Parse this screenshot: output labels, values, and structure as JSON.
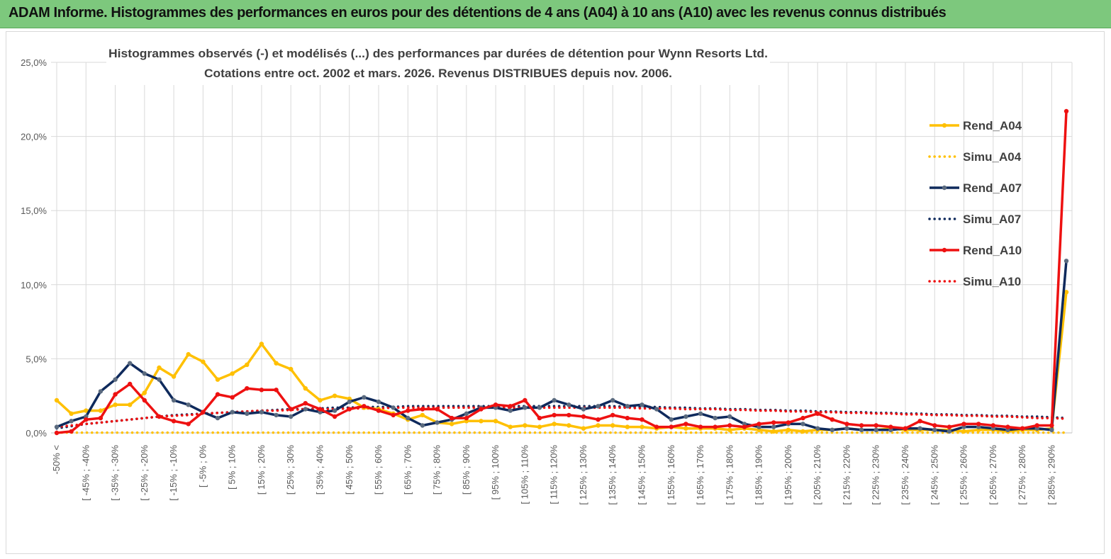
{
  "banner": {
    "title": "ADAM Informe. Histogrammes des performances en euros pour des détentions de 4 ans (A04) à 10 ans (A10) avec les revenus connus distribués"
  },
  "colors": {
    "banner": "#7dc87d",
    "A04": "#ffc000",
    "A07": "#0f2a5c",
    "A07_marker": "#5b6b7f",
    "A10": "#ee1111",
    "grid": "#d9d9d9"
  },
  "chart_data": {
    "type": "line",
    "title_line1": "Histogrammes observés (-) et modélisés (...) des performances par durées de détention pour Wynn Resorts Ltd.",
    "title_line2": "Cotations entre oct. 2002 et mars. 2026. Revenus DISTRIBUES depuis nov. 2006.",
    "xlabel": "",
    "ylabel": "",
    "ylim": [
      0,
      25
    ],
    "yticks": [
      "0,0%",
      "5,0%",
      "10,0%",
      "15,0%",
      "20,0%",
      "25,0%"
    ],
    "n_points": 70,
    "x_labels": [
      "-50% <",
      "[ -45% ; -40%",
      "[ -35% ; -30%",
      "[ -25% ; -20%",
      "[ -15% ; -10%",
      "[ -5% ; 0%",
      "[ 5% ; 10%",
      "[ 15% ; 20%",
      "[ 25% ; 30%",
      "[ 35% ; 40%",
      "[ 45% ; 50%",
      "[ 55% ; 60%",
      "[ 65% ; 70%",
      "[ 75% ; 80%",
      "[ 85% ; 90%",
      "[ 95% ; 100%",
      "[ 105% ; 110%",
      "[ 115% ; 120%",
      "[ 125% ; 130%",
      "[ 135% ; 140%",
      "[ 145% ; 150%",
      "[ 155% ; 160%",
      "[ 165% ; 170%",
      "[ 175% ; 180%",
      "[ 185% ; 190%",
      "[ 195% ; 200%",
      "[ 205% ; 210%",
      "[ 215% ; 220%",
      "[ 225% ; 230%",
      "[ 235% ; 240%",
      "[ 245% ; 250%",
      "[ 255% ; 260%",
      "[ 265% ; 270%",
      "[ 275% ; 280%",
      "[ 285% ; 290%"
    ],
    "legend": [
      "Rend_A04",
      "Simu_A04",
      "Rend_A07",
      "Simu_A07",
      "Rend_A10",
      "Simu_A10"
    ],
    "legend_position": "right",
    "series": [
      {
        "name": "Rend_A04",
        "style": "solid",
        "color": "#ffc000",
        "values": [
          2.2,
          1.3,
          1.5,
          1.5,
          1.9,
          1.9,
          2.7,
          4.4,
          3.8,
          5.3,
          4.8,
          3.6,
          4.0,
          4.6,
          6.0,
          4.7,
          4.3,
          3.0,
          2.2,
          2.5,
          2.3,
          1.7,
          1.6,
          1.3,
          0.9,
          1.2,
          0.7,
          0.6,
          0.8,
          0.8,
          0.8,
          0.4,
          0.5,
          0.4,
          0.6,
          0.5,
          0.3,
          0.5,
          0.5,
          0.4,
          0.4,
          0.3,
          0.4,
          0.3,
          0.3,
          0.3,
          0.2,
          0.3,
          0.2,
          0.1,
          0.2,
          0.1,
          0.2,
          0.2,
          0.3,
          0.2,
          0.2,
          0.3,
          0.2,
          0.2,
          0.2,
          0.2,
          0.1,
          0.2,
          0.2,
          0.1,
          0.2,
          0.2,
          0.3,
          9.5
        ]
      },
      {
        "name": "Simu_A04",
        "style": "dotted",
        "color": "#ffc000",
        "values": [
          0.02,
          0.02,
          0.02,
          0.02,
          0.02,
          0.02,
          0.02,
          0.02,
          0.02,
          0.02,
          0.02,
          0.02,
          0.02,
          0.02,
          0.02,
          0.02,
          0.02,
          0.02,
          0.02,
          0.02,
          0.02,
          0.02,
          0.02,
          0.02,
          0.02,
          0.02,
          0.02,
          0.02,
          0.02,
          0.02,
          0.02,
          0.02,
          0.02,
          0.02,
          0.02,
          0.02,
          0.02,
          0.02,
          0.02,
          0.02,
          0.02,
          0.02,
          0.02,
          0.02,
          0.02,
          0.02,
          0.02,
          0.02,
          0.02,
          0.02,
          0.02,
          0.02,
          0.02,
          0.02,
          0.02,
          0.02,
          0.02,
          0.02,
          0.02,
          0.02,
          0.02,
          0.02,
          0.02,
          0.02,
          0.02,
          0.02,
          0.02,
          0.02,
          0.02,
          0.02
        ]
      },
      {
        "name": "Rend_A07",
        "style": "solid",
        "color": "#0f2a5c",
        "values": [
          0.4,
          0.8,
          1.1,
          2.8,
          3.6,
          4.7,
          4.0,
          3.6,
          2.2,
          1.9,
          1.4,
          1.0,
          1.4,
          1.3,
          1.4,
          1.2,
          1.1,
          1.6,
          1.4,
          1.5,
          2.1,
          2.4,
          2.1,
          1.7,
          1.0,
          0.5,
          0.7,
          0.9,
          1.3,
          1.7,
          1.7,
          1.5,
          1.7,
          1.7,
          2.2,
          1.9,
          1.6,
          1.8,
          2.2,
          1.8,
          1.9,
          1.6,
          0.9,
          1.1,
          1.3,
          1.0,
          1.1,
          0.6,
          0.4,
          0.4,
          0.6,
          0.6,
          0.3,
          0.2,
          0.3,
          0.2,
          0.2,
          0.2,
          0.3,
          0.3,
          0.2,
          0.1,
          0.4,
          0.4,
          0.3,
          0.2,
          0.3,
          0.3,
          0.2,
          11.6
        ]
      },
      {
        "name": "Simu_A07",
        "style": "dotted",
        "color": "#0f2a5c",
        "values": [
          0.3,
          0.45,
          0.6,
          0.7,
          0.8,
          0.9,
          1.0,
          1.1,
          1.2,
          1.25,
          1.3,
          1.35,
          1.4,
          1.45,
          1.5,
          1.55,
          1.6,
          1.6,
          1.65,
          1.7,
          1.7,
          1.75,
          1.75,
          1.75,
          1.8,
          1.8,
          1.8,
          1.8,
          1.8,
          1.8,
          1.8,
          1.8,
          1.8,
          1.8,
          1.8,
          1.8,
          1.8,
          1.8,
          1.8,
          1.75,
          1.75,
          1.75,
          1.7,
          1.7,
          1.65,
          1.65,
          1.6,
          1.6,
          1.55,
          1.55,
          1.5,
          1.5,
          1.45,
          1.45,
          1.4,
          1.4,
          1.35,
          1.35,
          1.3,
          1.3,
          1.25,
          1.25,
          1.2,
          1.2,
          1.15,
          1.15,
          1.1,
          1.1,
          1.05,
          1.0
        ]
      },
      {
        "name": "Rend_A10",
        "style": "solid",
        "color": "#ee1111",
        "values": [
          0.0,
          0.1,
          0.9,
          1.0,
          2.6,
          3.3,
          2.2,
          1.1,
          0.8,
          0.6,
          1.4,
          2.6,
          2.4,
          3.0,
          2.9,
          2.9,
          1.6,
          2.0,
          1.6,
          1.1,
          1.6,
          1.8,
          1.5,
          1.2,
          1.5,
          1.6,
          1.6,
          1.0,
          1.0,
          1.6,
          1.9,
          1.8,
          2.2,
          1.0,
          1.2,
          1.2,
          1.1,
          0.9,
          1.2,
          1.0,
          0.9,
          0.4,
          0.4,
          0.6,
          0.4,
          0.4,
          0.5,
          0.4,
          0.6,
          0.7,
          0.7,
          1.0,
          1.3,
          0.9,
          0.6,
          0.5,
          0.5,
          0.4,
          0.3,
          0.8,
          0.5,
          0.4,
          0.6,
          0.6,
          0.5,
          0.4,
          0.3,
          0.5,
          0.5,
          21.7
        ]
      },
      {
        "name": "Simu_A10",
        "style": "dotted",
        "color": "#ee1111",
        "values": [
          0.4,
          0.5,
          0.6,
          0.7,
          0.8,
          0.9,
          1.0,
          1.1,
          1.15,
          1.2,
          1.3,
          1.35,
          1.4,
          1.45,
          1.5,
          1.5,
          1.55,
          1.6,
          1.6,
          1.6,
          1.65,
          1.65,
          1.65,
          1.7,
          1.7,
          1.7,
          1.7,
          1.7,
          1.7,
          1.7,
          1.7,
          1.7,
          1.7,
          1.7,
          1.7,
          1.7,
          1.7,
          1.7,
          1.7,
          1.7,
          1.65,
          1.65,
          1.65,
          1.6,
          1.6,
          1.6,
          1.55,
          1.55,
          1.5,
          1.5,
          1.45,
          1.45,
          1.4,
          1.4,
          1.35,
          1.35,
          1.3,
          1.3,
          1.25,
          1.25,
          1.2,
          1.2,
          1.15,
          1.15,
          1.1,
          1.1,
          1.05,
          1.0,
          1.0,
          0.95
        ]
      }
    ]
  }
}
